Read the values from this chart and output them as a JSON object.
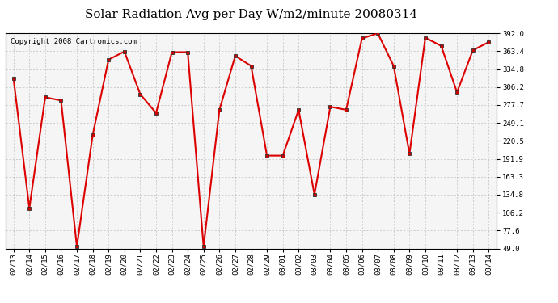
{
  "title": "Solar Radiation Avg per Day W/m2/minute 20080314",
  "copyright": "Copyright 2008 Cartronics.com",
  "dates": [
    "02/13",
    "02/14",
    "02/15",
    "02/16",
    "02/17",
    "02/18",
    "02/19",
    "02/20",
    "02/21",
    "02/22",
    "02/23",
    "02/24",
    "02/25",
    "02/26",
    "02/27",
    "02/28",
    "02/29",
    "03/01",
    "03/02",
    "03/03",
    "03/04",
    "03/05",
    "03/06",
    "03/07",
    "03/08",
    "03/09",
    "03/10",
    "03/11",
    "03/12",
    "03/13",
    "03/14"
  ],
  "values": [
    320,
    113,
    290,
    285,
    52,
    230,
    350,
    363,
    295,
    265,
    362,
    362,
    52,
    270,
    356,
    340,
    197,
    197,
    270,
    135,
    275,
    270,
    384,
    392,
    340,
    200,
    385,
    372,
    298,
    365,
    378
  ],
  "yticks": [
    49.0,
    77.6,
    106.2,
    134.8,
    163.3,
    191.9,
    220.5,
    249.1,
    277.7,
    306.2,
    334.8,
    363.4,
    392.0
  ],
  "line_color": "#dd0000",
  "marker": "s",
  "marker_size": 2.5,
  "grid_color": "#bbbbbb",
  "bg_color": "#ffffff",
  "plot_bg_color": "#f5f5f5",
  "title_fontsize": 11,
  "copyright_fontsize": 6.5,
  "tick_fontsize": 6.5,
  "ylim": [
    49.0,
    392.0
  ]
}
